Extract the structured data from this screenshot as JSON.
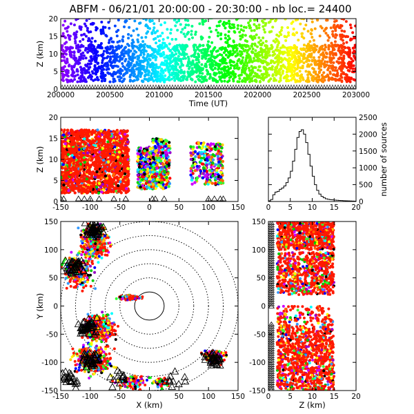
{
  "title": "ABFM - 06/21/01 20:00:00 - 20:30:00 - nb loc.=  24400",
  "chart_data": [
    {
      "id": "time-height",
      "type": "scatter",
      "xlabel": "Time (UT)",
      "ylabel": "Z (km)",
      "xlim": [
        200000,
        203000
      ],
      "ylim": [
        0,
        20
      ],
      "xticks": [
        "200000",
        "200500",
        "201000",
        "201500",
        "202000",
        "202500",
        "203000"
      ],
      "yticks": [
        "0",
        "5",
        "10",
        "15",
        "20"
      ],
      "color_scale": "time (purple→red)",
      "density": {
        "core_z": [
          2,
          12
        ],
        "sparse_z": [
          12,
          20
        ]
      }
    },
    {
      "id": "x-z",
      "type": "scatter",
      "xlabel": "",
      "ylabel": "Z (km)",
      "xlim": [
        -150,
        150
      ],
      "ylim": [
        0,
        20
      ],
      "xticks": [
        "-150",
        "-100",
        "-50",
        "0",
        "50",
        "100",
        "150"
      ],
      "yticks": [
        "0",
        "5",
        "10",
        "15",
        "20"
      ],
      "clusters": [
        {
          "x": [
            -150,
            -35
          ],
          "z": [
            2,
            17
          ]
        },
        {
          "x": [
            -20,
            10
          ],
          "z": [
            3,
            13
          ]
        },
        {
          "x": [
            5,
            35
          ],
          "z": [
            3,
            15
          ]
        },
        {
          "x": [
            70,
            125
          ],
          "z": [
            4,
            14
          ]
        }
      ]
    },
    {
      "id": "height-histogram",
      "type": "line",
      "xlabel": "",
      "ylabel": "number of sources",
      "xlim": [
        0,
        20
      ],
      "ylim": [
        0,
        2500
      ],
      "xticks": [
        "0",
        "5",
        "10",
        "15",
        "20"
      ],
      "yticks": [
        "0",
        "500",
        "1000",
        "1500",
        "2000",
        "2500"
      ],
      "x": [
        0,
        0.5,
        1,
        1.5,
        2,
        2.5,
        3,
        3.5,
        4,
        4.5,
        5,
        5.5,
        6,
        6.5,
        7,
        7.5,
        8,
        8.5,
        9,
        9.5,
        10,
        10.5,
        11,
        11.5,
        12,
        12.5,
        13,
        13.5,
        14,
        14.5,
        15,
        15.5,
        16,
        16.5,
        17,
        17.5,
        18,
        18.5,
        19,
        19.5
      ],
      "y": [
        20,
        60,
        200,
        280,
        300,
        360,
        400,
        460,
        560,
        700,
        900,
        1200,
        1550,
        1900,
        2080,
        2130,
        2000,
        1750,
        1400,
        1050,
        750,
        500,
        330,
        220,
        150,
        110,
        80,
        65,
        55,
        48,
        40,
        35,
        30,
        28,
        24,
        20,
        18,
        15,
        12,
        10
      ]
    },
    {
      "id": "plan-view",
      "type": "scatter",
      "xlabel": "X (km)",
      "ylabel": "Y (km)",
      "xlim": [
        -150,
        150
      ],
      "ylim": [
        -150,
        150
      ],
      "xticks": [
        "-150",
        "-100",
        "-50",
        "0",
        "50",
        "100",
        "150"
      ],
      "yticks": [
        "-150",
        "-100",
        "-50",
        "0",
        "50",
        "100",
        "150"
      ],
      "range_rings_km": [
        25,
        50,
        75,
        100,
        125,
        150
      ]
    },
    {
      "id": "z-y",
      "type": "scatter",
      "xlabel": "Z (km)",
      "ylabel": "",
      "xlim": [
        0,
        20
      ],
      "ylim": [
        -150,
        150
      ],
      "xticks": [
        "0",
        "5",
        "10",
        "15",
        "20"
      ],
      "yticks": [
        "-150",
        "-100",
        "-50",
        "0",
        "50",
        "100",
        "150"
      ]
    }
  ]
}
